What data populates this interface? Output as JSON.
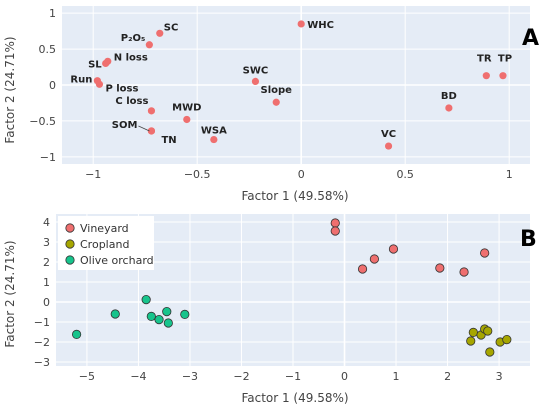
{
  "colors": {
    "panel_bg": "#e5ecf6",
    "grid": "#ffffff",
    "loading_point": "#ef6f6f",
    "vineyard": "#ef6f6f",
    "cropland": "#a6a600",
    "olive_orchard": "#17c48c"
  },
  "chart_data": [
    {
      "type": "scatter",
      "panel": "A",
      "xlabel": "Factor 1 (49.58%)",
      "ylabel": "Factor 2 (24.71%)",
      "xlim": [
        -1.15,
        1.1
      ],
      "ylim": [
        -1.1,
        1.1
      ],
      "xticks": [
        "−1",
        "−0.5",
        "0",
        "0.5",
        "1"
      ],
      "xtick_values": [
        -1,
        -0.5,
        0,
        0.5,
        1
      ],
      "yticks": [
        "−1",
        "−0.5",
        "0",
        "0.5",
        "1"
      ],
      "ytick_values": [
        -1,
        -0.5,
        0,
        0.5,
        1
      ],
      "grid": true,
      "points": [
        {
          "label": "WHC",
          "x": 0.0,
          "y": 0.85
        },
        {
          "label": "SC",
          "x": -0.68,
          "y": 0.72
        },
        {
          "label": "P₂O₅",
          "x": -0.73,
          "y": 0.56
        },
        {
          "label": "N loss",
          "x": -0.93,
          "y": 0.33
        },
        {
          "label": "SL",
          "x": -0.94,
          "y": 0.3
        },
        {
          "label": "Run",
          "x": -0.98,
          "y": 0.06
        },
        {
          "label": "P loss",
          "x": -0.97,
          "y": 0.01
        },
        {
          "label": "C loss",
          "x": -0.72,
          "y": -0.36
        },
        {
          "label": "SOM",
          "x": -0.72,
          "y": -0.64
        },
        {
          "label": "TN",
          "x": -0.72,
          "y": -0.64
        },
        {
          "label": "MWD",
          "x": -0.55,
          "y": -0.48
        },
        {
          "label": "WSA",
          "x": -0.42,
          "y": -0.76
        },
        {
          "label": "SWC",
          "x": -0.22,
          "y": 0.05
        },
        {
          "label": "Slope",
          "x": -0.12,
          "y": -0.24
        },
        {
          "label": "VC",
          "x": 0.42,
          "y": -0.85
        },
        {
          "label": "BD",
          "x": 0.71,
          "y": -0.32
        },
        {
          "label": "TR",
          "x": 0.89,
          "y": 0.13
        },
        {
          "label": "TP",
          "x": 0.97,
          "y": 0.13
        }
      ]
    },
    {
      "type": "scatter",
      "panel": "B",
      "xlabel": "Factor 1 (49.58%)",
      "ylabel": "Factor 2 (24.71%)",
      "xlim": [
        -5.6,
        3.6
      ],
      "ylim": [
        -3.2,
        4.4
      ],
      "xticks": [
        "−5",
        "−4",
        "−3",
        "−2",
        "−1",
        "0",
        "1",
        "2",
        "3"
      ],
      "xtick_values": [
        -5,
        -4,
        -3,
        -2,
        -1,
        0,
        1,
        2,
        3
      ],
      "yticks": [
        "−3",
        "−2",
        "−1",
        "0",
        "1",
        "2",
        "3",
        "4"
      ],
      "ytick_values": [
        -3,
        -2,
        -1,
        0,
        1,
        2,
        3,
        4
      ],
      "grid": true,
      "legend_placement": "top-left",
      "series": [
        {
          "name": "Vineyard",
          "points": [
            [
              -0.18,
              3.95
            ],
            [
              -0.18,
              3.55
            ],
            [
              0.35,
              1.65
            ],
            [
              0.58,
              2.15
            ],
            [
              0.95,
              2.65
            ],
            [
              1.85,
              1.7
            ],
            [
              2.32,
              1.5
            ],
            [
              2.72,
              2.45
            ]
          ]
        },
        {
          "name": "Cropland",
          "points": [
            [
              2.5,
              -1.52
            ],
            [
              2.45,
              -1.95
            ],
            [
              2.65,
              -1.65
            ],
            [
              2.72,
              -1.35
            ],
            [
              2.78,
              -1.45
            ],
            [
              2.82,
              -2.5
            ],
            [
              3.02,
              -2.0
            ],
            [
              3.15,
              -1.88
            ]
          ]
        },
        {
          "name": "Olive orchard",
          "points": [
            [
              -5.2,
              -1.62
            ],
            [
              -4.45,
              -0.6
            ],
            [
              -3.85,
              0.12
            ],
            [
              -3.75,
              -0.72
            ],
            [
              -3.6,
              -0.88
            ],
            [
              -3.45,
              -0.48
            ],
            [
              -3.42,
              -1.05
            ],
            [
              -3.1,
              -0.62
            ]
          ]
        }
      ]
    }
  ]
}
